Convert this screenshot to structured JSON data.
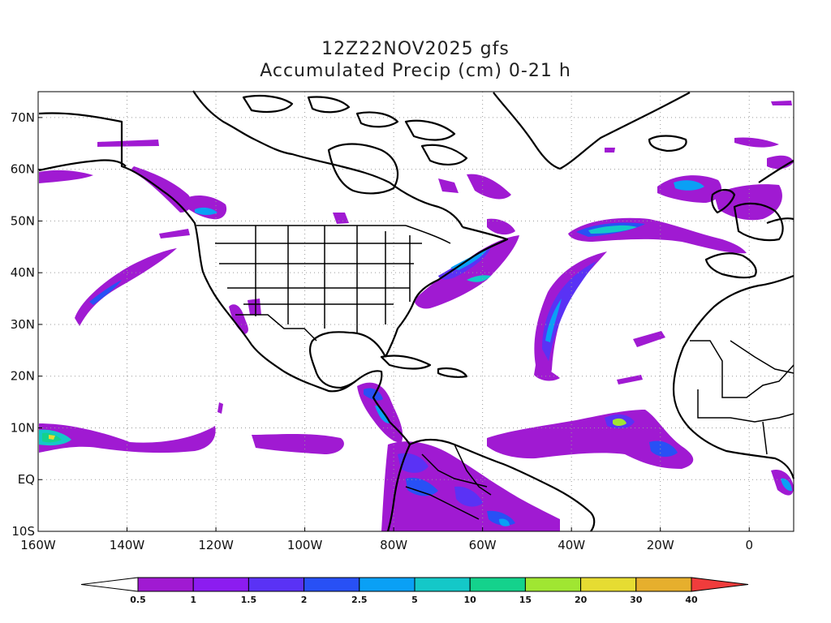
{
  "title": {
    "line1": "12Z22NOV2025 gfs",
    "line2": "Accumulated Precip (cm) 0-21 h"
  },
  "map": {
    "lon_range": [
      -160,
      10
    ],
    "lat_range": [
      -10,
      75
    ],
    "lat_ticks": [
      {
        "value": 70,
        "label": "70N"
      },
      {
        "value": 60,
        "label": "60N"
      },
      {
        "value": 50,
        "label": "50N"
      },
      {
        "value": 40,
        "label": "40N"
      },
      {
        "value": 30,
        "label": "30N"
      },
      {
        "value": 20,
        "label": "20N"
      },
      {
        "value": 10,
        "label": "10N"
      },
      {
        "value": 0,
        "label": "EQ"
      },
      {
        "value": -10,
        "label": "10S"
      }
    ],
    "lon_ticks": [
      {
        "value": -160,
        "label": "160W"
      },
      {
        "value": -140,
        "label": "140W"
      },
      {
        "value": -120,
        "label": "120W"
      },
      {
        "value": -100,
        "label": "100W"
      },
      {
        "value": -80,
        "label": "80W"
      },
      {
        "value": -60,
        "label": "60W"
      },
      {
        "value": -40,
        "label": "40W"
      },
      {
        "value": -20,
        "label": "20W"
      },
      {
        "value": 0,
        "label": "0"
      }
    ],
    "grid": true
  },
  "colorbar": {
    "levels": [
      "0.5",
      "1",
      "1.5",
      "2",
      "2.5",
      "5",
      "10",
      "15",
      "20",
      "30",
      "40"
    ],
    "colors": [
      "#a01ad2",
      "#8c1cf0",
      "#5a32f5",
      "#2850f5",
      "#0aa0f5",
      "#14c8c8",
      "#14d28c",
      "#a0e632",
      "#e6dc32",
      "#e6af2d",
      "#f08228",
      "#f03c3c"
    ]
  }
}
